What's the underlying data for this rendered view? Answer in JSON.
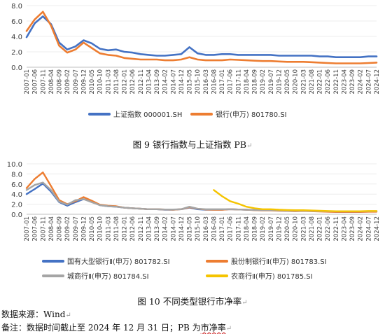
{
  "figures": [
    {
      "caption": "图 9  银行指数与上证指数 PB",
      "chart_data": {
        "type": "line",
        "ylim": [
          0,
          8
        ],
        "yticks": [
          "0.0",
          "2.0",
          "4.0",
          "6.0",
          "8.0"
        ],
        "x_labels": [
          "2007-01",
          "2007-11",
          "2008-09",
          "2009-07",
          "2010-05",
          "2011-03",
          "2012-01",
          "2012-11",
          "2013-09",
          "2014-07",
          "2015-05",
          "2016-03",
          "2017-01",
          "2017-11",
          "2018-09",
          "2019-07",
          "2020-05",
          "2021-03",
          "2022-01",
          "2022-11",
          "2023-09",
          "2024-07"
        ],
        "x_tick_labels": [
          "2007-01",
          "2007-06",
          "2007-11",
          "2008-04",
          "2008-09",
          "2009-02",
          "2009-07",
          "2009-12",
          "2010-05",
          "2010-10",
          "2011-03",
          "2011-08",
          "2012-01",
          "2012-06",
          "2012-11",
          "2013-04",
          "2013-09",
          "2014-02",
          "2014-07",
          "2014-12",
          "2015-05",
          "2015-10",
          "2016-03",
          "2016-08",
          "2017-01",
          "2017-06",
          "2017-11",
          "2018-04",
          "2018-09",
          "2019-02",
          "2019-07",
          "2019-12",
          "2020-05",
          "2020-10",
          "2021-03",
          "2021-08",
          "2022-01",
          "2022-06",
          "2022-11",
          "2023-04",
          "2023-09",
          "2024-02",
          "2024-07",
          "2024-12"
        ],
        "series": [
          {
            "name": "上证指数 000001.SH",
            "color": "#4472c4",
            "values": [
              3.9,
              5.7,
              6.6,
              5.6,
              3.2,
              2.3,
              2.7,
              3.5,
              3.1,
              2.4,
              2.2,
              2.3,
              2.0,
              1.9,
              1.7,
              1.6,
              1.5,
              1.5,
              1.6,
              1.7,
              2.6,
              1.8,
              1.6,
              1.6,
              1.7,
              1.7,
              1.6,
              1.6,
              1.6,
              1.6,
              1.6,
              1.5,
              1.5,
              1.5,
              1.5,
              1.5,
              1.4,
              1.4,
              1.3,
              1.3,
              1.3,
              1.3,
              1.4,
              1.4
            ]
          },
          {
            "name": "银行(申万) 801780.SI",
            "color": "#ed7d31",
            "values": [
              4.7,
              6.2,
              7.2,
              5.4,
              2.8,
              1.9,
              2.3,
              3.2,
              2.5,
              1.8,
              1.6,
              1.5,
              1.2,
              1.1,
              1.0,
              1.0,
              1.0,
              0.9,
              0.9,
              1.0,
              1.3,
              1.0,
              0.9,
              0.9,
              0.9,
              1.0,
              0.95,
              0.9,
              0.85,
              0.8,
              0.8,
              0.75,
              0.7,
              0.7,
              0.7,
              0.65,
              0.6,
              0.55,
              0.5,
              0.5,
              0.5,
              0.5,
              0.55,
              0.6
            ]
          }
        ]
      }
    },
    {
      "caption": "图 10  不同类型银行市净率",
      "chart_data": {
        "type": "line",
        "ylim": [
          0,
          10
        ],
        "yticks": [
          "0.0",
          "2.0",
          "4.0",
          "6.0",
          "8.0",
          "10.0"
        ],
        "x_labels": [
          "2007-01",
          "2007-06",
          "2008-04",
          "2009-02",
          "2009-07",
          "2010-05",
          "2011-03",
          "2012-01",
          "2012-11",
          "2013-09",
          "2014-07",
          "2015-05",
          "2016-03",
          "2017-01",
          "2017-11",
          "2018-09",
          "2019-07",
          "2020-05",
          "2021-03",
          "2022-01",
          "2022-11",
          "2023-09",
          "2024-07"
        ],
        "x_tick_labels": [
          "2007-01",
          "2007-06",
          "2007-11",
          "2008-04",
          "2008-09",
          "2009-02",
          "2009-07",
          "2009-12",
          "2010-05",
          "2010-10",
          "2011-03",
          "2011-08",
          "2012-01",
          "2012-06",
          "2012-11",
          "2013-04",
          "2013-09",
          "2014-02",
          "2014-07",
          "2014-12",
          "2015-05",
          "2015-10",
          "2016-03",
          "2016-08",
          "2017-01",
          "2017-06",
          "2017-11",
          "2018-04",
          "2018-09",
          "2019-02",
          "2019-07",
          "2019-12",
          "2020-05",
          "2020-10",
          "2021-03",
          "2021-08",
          "2022-01",
          "2022-06",
          "2022-11",
          "2023-04",
          "2023-09",
          "2024-02",
          "2024-07",
          "2024-12"
        ],
        "series": [
          {
            "name": "国有大型银行Ⅱ(申万) 801782.SI",
            "color": "#4472c4",
            "values": [
              4.0,
              5.0,
              6.1,
              4.5,
              2.4,
              1.7,
              2.4,
              3.0,
              2.5,
              1.8,
              1.6,
              1.5,
              1.3,
              1.2,
              1.1,
              1.0,
              1.0,
              0.9,
              0.9,
              1.0,
              1.3,
              1.0,
              0.9,
              0.9,
              0.9,
              1.0,
              0.95,
              0.9,
              0.85,
              0.8,
              0.8,
              0.75,
              0.7,
              0.7,
              0.7,
              0.65,
              0.6,
              0.55,
              0.55,
              0.55,
              0.55,
              0.55,
              0.6,
              0.6
            ]
          },
          {
            "name": "股份制银行Ⅱ(申万) 801783.SI",
            "color": "#ed7d31",
            "values": [
              5.2,
              7.0,
              8.3,
              5.6,
              2.8,
              2.0,
              2.6,
              3.4,
              2.7,
              1.9,
              1.7,
              1.6,
              1.3,
              1.2,
              1.1,
              1.0,
              1.0,
              0.95,
              0.9,
              1.0,
              1.4,
              1.1,
              0.95,
              0.9,
              0.9,
              1.0,
              0.95,
              0.9,
              0.8,
              0.75,
              0.75,
              0.7,
              0.65,
              0.6,
              0.65,
              0.6,
              0.55,
              0.5,
              0.45,
              0.45,
              0.45,
              0.45,
              0.5,
              0.5
            ]
          },
          {
            "name": "城商行Ⅱ(申万) 801784.SI",
            "color": "#a5a5a5",
            "values": [
              4.8,
              5.8,
              6.3,
              4.8,
              2.5,
              1.9,
              2.8,
              3.0,
              2.4,
              1.8,
              1.6,
              1.5,
              1.3,
              1.2,
              1.1,
              1.0,
              1.0,
              0.95,
              0.95,
              1.0,
              1.5,
              1.1,
              1.0,
              1.0,
              1.0,
              1.0,
              0.95,
              0.9,
              0.85,
              0.8,
              0.8,
              0.75,
              0.7,
              0.7,
              0.7,
              0.65,
              0.6,
              0.6,
              0.55,
              0.55,
              0.55,
              0.55,
              0.6,
              0.6
            ]
          },
          {
            "name": "农商行Ⅱ(申万) 801785.SI",
            "color": "#f5c400",
            "values": [
              null,
              null,
              null,
              null,
              null,
              null,
              null,
              null,
              null,
              null,
              null,
              null,
              null,
              null,
              null,
              null,
              null,
              null,
              null,
              null,
              null,
              null,
              null,
              4.8,
              3.6,
              2.6,
              2.1,
              1.5,
              1.2,
              1.0,
              1.0,
              0.9,
              0.85,
              0.8,
              0.8,
              0.75,
              0.7,
              0.65,
              0.6,
              0.6,
              0.6,
              0.6,
              0.65,
              0.65
            ]
          }
        ]
      }
    }
  ],
  "notes": {
    "source": "数据来源：Wind",
    "remark_prefix": "备注：数据时间截止至 2024 年 12 月 31 日；PB 为",
    "remark_underlined": "市净率"
  },
  "return_mark": "↵"
}
